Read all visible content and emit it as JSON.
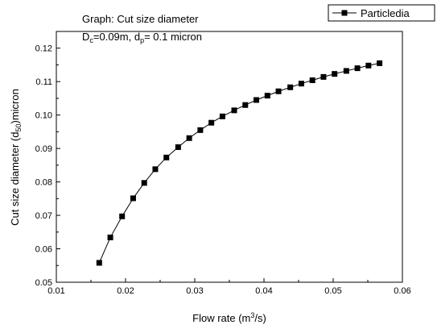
{
  "chart_data": {
    "type": "line",
    "annotation": {
      "line1": "Graph: Cut size diameter",
      "line2_dc_main": "D",
      "line2_dc_sub": "c",
      "line2_dc_value": "=0.09m, d",
      "line2_dp_sub": "p",
      "line2_dp_value": "= 0.1 micron"
    },
    "xlabel": {
      "main": "Flow rate (m",
      "sup": "3",
      "end": "/s)"
    },
    "ylabel": {
      "main": "Cut size diameter (d",
      "sub": "50",
      "end": ")micron"
    },
    "xlim": [
      0.01,
      0.06
    ],
    "ylim": [
      0.05,
      0.125
    ],
    "x_ticks": [
      "0.01",
      "0.02",
      "0.03",
      "0.04",
      "0.05",
      "0.06"
    ],
    "x_tick_values": [
      0.01,
      0.02,
      0.03,
      0.04,
      0.05,
      0.06
    ],
    "y_ticks": [
      "0.05",
      "0.06",
      "0.07",
      "0.08",
      "0.09",
      "0.10",
      "0.11",
      "0.12"
    ],
    "y_tick_values": [
      0.05,
      0.06,
      0.07,
      0.08,
      0.09,
      0.1,
      0.11,
      0.12
    ],
    "grid": false,
    "legend_position": "top-right",
    "series": [
      {
        "name": "Particledia",
        "color": "#000000",
        "marker": "square",
        "x": [
          0.0162,
          0.0178,
          0.0195,
          0.0211,
          0.0227,
          0.0243,
          0.0259,
          0.0276,
          0.0292,
          0.0308,
          0.0324,
          0.034,
          0.0357,
          0.0373,
          0.0389,
          0.0405,
          0.0421,
          0.0438,
          0.0454,
          0.047,
          0.0486,
          0.0502,
          0.0519,
          0.0535,
          0.0551,
          0.0567
        ],
        "y": [
          0.0558,
          0.0634,
          0.0697,
          0.0751,
          0.0797,
          0.0838,
          0.0873,
          0.0904,
          0.0931,
          0.0955,
          0.0977,
          0.0996,
          0.1014,
          0.103,
          0.1045,
          0.1058,
          0.1071,
          0.1083,
          0.1094,
          0.1104,
          0.1114,
          0.1123,
          0.1132,
          0.114,
          0.1148,
          0.1155
        ]
      }
    ]
  }
}
